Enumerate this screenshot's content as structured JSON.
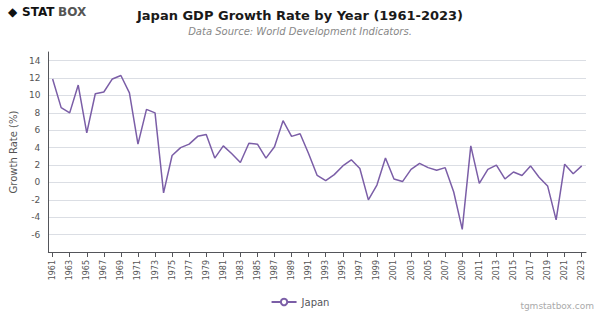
{
  "chart_data": {
    "type": "line",
    "title": "Japan GDP Growth Rate by Year (1961-2023)",
    "subtitle": "Data Source: World Development Indicators.",
    "ylabel": "Growth Rate (%)",
    "annotations": [
      "◆",
      "STAT",
      "BOX",
      "tgmstatbox.com"
    ],
    "x": [
      1961,
      1962,
      1963,
      1964,
      1965,
      1966,
      1967,
      1968,
      1969,
      1970,
      1971,
      1972,
      1973,
      1974,
      1975,
      1976,
      1977,
      1978,
      1979,
      1980,
      1981,
      1982,
      1983,
      1984,
      1985,
      1986,
      1987,
      1988,
      1989,
      1990,
      1991,
      1992,
      1993,
      1994,
      1995,
      1996,
      1997,
      1998,
      1999,
      2000,
      2001,
      2002,
      2003,
      2004,
      2005,
      2006,
      2007,
      2008,
      2009,
      2010,
      2011,
      2012,
      2013,
      2014,
      2015,
      2016,
      2017,
      2018,
      2019,
      2020,
      2021,
      2022,
      2023
    ],
    "series": [
      {
        "name": "Japan",
        "color": "#7B5EA7",
        "values": [
          11.9,
          8.6,
          8.0,
          11.2,
          5.7,
          10.2,
          10.4,
          11.9,
          12.3,
          10.3,
          4.4,
          8.4,
          8.0,
          -1.2,
          3.1,
          4.0,
          4.4,
          5.3,
          5.5,
          2.8,
          4.2,
          3.3,
          2.3,
          4.5,
          4.4,
          2.8,
          4.1,
          7.1,
          5.3,
          5.6,
          3.3,
          0.8,
          0.2,
          0.9,
          1.9,
          2.6,
          1.6,
          -2.0,
          -0.3,
          2.8,
          0.4,
          0.1,
          1.5,
          2.2,
          1.7,
          1.4,
          1.7,
          -1.1,
          -5.4,
          4.2,
          -0.1,
          1.5,
          2.0,
          0.4,
          1.2,
          0.8,
          1.9,
          0.6,
          -0.4,
          -4.3,
          2.1,
          1.0,
          1.9
        ]
      }
    ],
    "xlim": [
      1960.5,
      2023.5
    ],
    "xticks": [
      1961,
      1963,
      1965,
      1967,
      1969,
      1971,
      1973,
      1975,
      1977,
      1979,
      1981,
      1983,
      1985,
      1987,
      1989,
      1991,
      1993,
      1995,
      1997,
      1999,
      2001,
      2003,
      2005,
      2007,
      2009,
      2011,
      2013,
      2015,
      2017,
      2019,
      2021,
      2023
    ],
    "ylim": [
      -8,
      15
    ],
    "yticks": [
      -6,
      -4,
      -2,
      0,
      2,
      4,
      6,
      8,
      10,
      12,
      14
    ],
    "grid": true,
    "legend": "bottom"
  }
}
